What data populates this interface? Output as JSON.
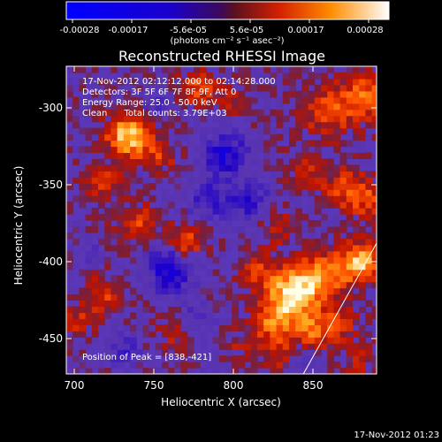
{
  "chart_data": {
    "type": "heatmap",
    "title": "Reconstructed RHESSI Image",
    "xlabel": "Heliocentric X (arcsec)",
    "ylabel": "Heliocentric Y (arcsec)",
    "xlim": [
      695,
      890
    ],
    "ylim": [
      -473,
      -273
    ],
    "x_ticks": [
      700,
      750,
      800,
      850
    ],
    "y_ticks": [
      -300,
      -350,
      -400,
      -450
    ],
    "colorbar": {
      "ticks": [
        "-0.00028",
        "-0.00017",
        "-5.6e-05",
        "5.6e-05",
        "0.00017",
        "0.00028"
      ],
      "label": "(photons cm⁻² s⁻¹ asec⁻²)",
      "range": [
        -0.00028,
        0.00028
      ]
    },
    "annotations": {
      "time": "17-Nov-2012 02:12:12.000 to 02:14:28.000",
      "detectors": "Detectors: 3F 5F 6F 7F 8F 9F, Att 0",
      "energy": "Energy Range: 25.0 - 50.0 keV",
      "clean": "Clean      Total counts: 3.79E+03",
      "peak": "Position of Peak = [838,-421]"
    },
    "peak_position": [
      838,
      -421
    ],
    "limb_line": [
      [
        844,
        -473
      ],
      [
        890,
        -388
      ]
    ],
    "hotspots": [
      {
        "x": 735,
        "y": -318,
        "v": 0.00026,
        "r": 10
      },
      {
        "x": 778,
        "y": -287,
        "v": 0.00014,
        "r": 8
      },
      {
        "x": 718,
        "y": -348,
        "v": 0.00011,
        "r": 8
      },
      {
        "x": 740,
        "y": -375,
        "v": 0.00012,
        "r": 9
      },
      {
        "x": 770,
        "y": -387,
        "v": 0.00016,
        "r": 8
      },
      {
        "x": 718,
        "y": -422,
        "v": 0.00012,
        "r": 9
      },
      {
        "x": 702,
        "y": -438,
        "v": 9e-05,
        "r": 7
      },
      {
        "x": 765,
        "y": -445,
        "v": 0.0001,
        "r": 9
      },
      {
        "x": 755,
        "y": -332,
        "v": 0.0001,
        "r": 7
      },
      {
        "x": 860,
        "y": -302,
        "v": 0.00013,
        "r": 12
      },
      {
        "x": 883,
        "y": -292,
        "v": 0.00016,
        "r": 10
      },
      {
        "x": 845,
        "y": -340,
        "v": 0.0001,
        "r": 8
      },
      {
        "x": 870,
        "y": -352,
        "v": 0.00012,
        "r": 10
      },
      {
        "x": 885,
        "y": -360,
        "v": 0.00011,
        "r": 8
      },
      {
        "x": 828,
        "y": -378,
        "v": 9e-05,
        "r": 8
      },
      {
        "x": 838,
        "y": -420,
        "v": 0.00028,
        "r": 12
      },
      {
        "x": 858,
        "y": -408,
        "v": 0.00016,
        "r": 10
      },
      {
        "x": 880,
        "y": -400,
        "v": 0.00024,
        "r": 9
      },
      {
        "x": 825,
        "y": -440,
        "v": 0.00016,
        "r": 9
      },
      {
        "x": 850,
        "y": -445,
        "v": 0.00014,
        "r": 9
      },
      {
        "x": 815,
        "y": -405,
        "v": 0.0001,
        "r": 8
      },
      {
        "x": 830,
        "y": -462,
        "v": 9e-05,
        "r": 8
      },
      {
        "x": 868,
        "y": -440,
        "v": 0.0001,
        "r": 8
      },
      {
        "x": 878,
        "y": -465,
        "v": 8e-05,
        "r": 7
      },
      {
        "x": 805,
        "y": -455,
        "v": 6e-05,
        "r": 7
      },
      {
        "x": 800,
        "y": -295,
        "v": 7e-05,
        "r": 7
      }
    ],
    "coldspots": [
      {
        "x": 795,
        "y": -330,
        "v": -0.00016,
        "r": 10
      },
      {
        "x": 785,
        "y": -360,
        "v": -0.00012,
        "r": 9
      },
      {
        "x": 760,
        "y": -405,
        "v": -0.00017,
        "r": 11
      },
      {
        "x": 775,
        "y": -440,
        "v": -0.00011,
        "r": 8
      },
      {
        "x": 810,
        "y": -360,
        "v": -0.00012,
        "r": 9
      },
      {
        "x": 730,
        "y": -455,
        "v": -9e-05,
        "r": 8
      },
      {
        "x": 842,
        "y": -462,
        "v": -8e-05,
        "r": 6
      },
      {
        "x": 750,
        "y": -300,
        "v": -8e-05,
        "r": 7
      },
      {
        "x": 710,
        "y": -395,
        "v": -6e-05,
        "r": 6
      }
    ],
    "footer": "17-Nov-2012 01:23"
  }
}
